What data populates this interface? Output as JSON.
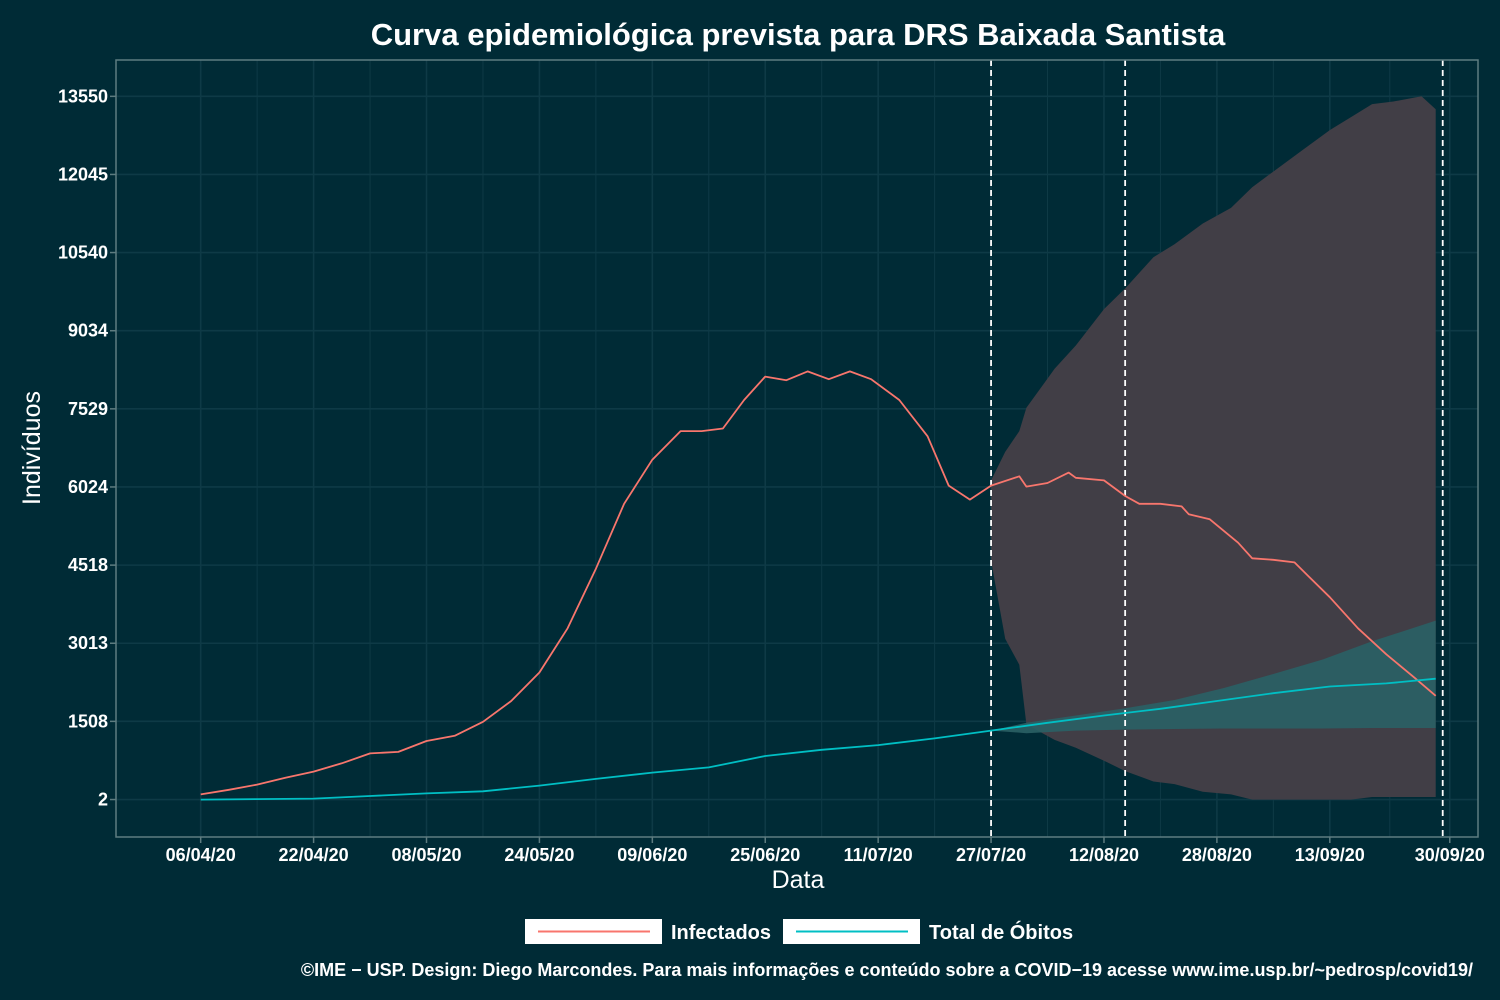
{
  "chart_data": {
    "type": "line",
    "title": "Curva epidemiológica prevista para DRS Baixada Santista",
    "xlabel": "Data",
    "ylabel": "Indivíduos",
    "x_start": "2020-04-06",
    "x_end": "2020-09-28",
    "xlim": [
      "2020-03-25",
      "2020-10-04"
    ],
    "ylim": [
      -720,
      14250
    ],
    "x_ticks": [
      "06/04/20",
      "22/04/20",
      "08/05/20",
      "24/05/20",
      "09/06/20",
      "25/06/20",
      "11/07/20",
      "27/07/20",
      "12/08/20",
      "28/08/20",
      "13/09/20",
      "30/09/20"
    ],
    "x_tick_dates": [
      "2020-04-06",
      "2020-04-22",
      "2020-05-08",
      "2020-05-24",
      "2020-06-09",
      "2020-06-25",
      "2020-07-11",
      "2020-07-27",
      "2020-08-12",
      "2020-08-28",
      "2020-09-13",
      "2020-09-30"
    ],
    "y_ticks": [
      2,
      1508,
      3013,
      4518,
      6024,
      7529,
      9034,
      10540,
      12045,
      13550
    ],
    "vlines": [
      "2020-07-27",
      "2020-08-15",
      "2020-09-29"
    ],
    "grid": true,
    "legend_position": "bottom",
    "series": [
      {
        "name": "Infectados",
        "color": "#f8766d",
        "points": [
          [
            "2020-04-06",
            100
          ],
          [
            "2020-04-10",
            190
          ],
          [
            "2020-04-14",
            290
          ],
          [
            "2020-04-18",
            420
          ],
          [
            "2020-04-22",
            540
          ],
          [
            "2020-04-26",
            700
          ],
          [
            "2020-04-30",
            890
          ],
          [
            "2020-05-04",
            920
          ],
          [
            "2020-05-08",
            1130
          ],
          [
            "2020-05-12",
            1230
          ],
          [
            "2020-05-16",
            1500
          ],
          [
            "2020-05-20",
            1900
          ],
          [
            "2020-05-24",
            2450
          ],
          [
            "2020-05-28",
            3300
          ],
          [
            "2020-06-01",
            4450
          ],
          [
            "2020-06-05",
            5700
          ],
          [
            "2020-06-09",
            6550
          ],
          [
            "2020-06-13",
            7100
          ],
          [
            "2020-06-16",
            7100
          ],
          [
            "2020-06-19",
            7150
          ],
          [
            "2020-06-22",
            7700
          ],
          [
            "2020-06-25",
            8150
          ],
          [
            "2020-06-28",
            8080
          ],
          [
            "2020-07-01",
            8250
          ],
          [
            "2020-07-04",
            8100
          ],
          [
            "2020-07-07",
            8250
          ],
          [
            "2020-07-10",
            8100
          ],
          [
            "2020-07-14",
            7700
          ],
          [
            "2020-07-18",
            7000
          ],
          [
            "2020-07-21",
            6050
          ],
          [
            "2020-07-24",
            5780
          ],
          [
            "2020-07-27",
            6050
          ],
          [
            "2020-07-31",
            6230
          ],
          [
            "2020-08-01",
            6030
          ],
          [
            "2020-08-04",
            6100
          ],
          [
            "2020-08-07",
            6300
          ],
          [
            "2020-08-08",
            6200
          ],
          [
            "2020-08-12",
            6150
          ],
          [
            "2020-08-15",
            5850
          ],
          [
            "2020-08-17",
            5700
          ],
          [
            "2020-08-20",
            5700
          ],
          [
            "2020-08-23",
            5650
          ],
          [
            "2020-08-24",
            5500
          ],
          [
            "2020-08-27",
            5400
          ],
          [
            "2020-08-31",
            4950
          ],
          [
            "2020-09-02",
            4650
          ],
          [
            "2020-09-05",
            4620
          ],
          [
            "2020-09-08",
            4570
          ],
          [
            "2020-09-10",
            4300
          ],
          [
            "2020-09-13",
            3900
          ],
          [
            "2020-09-17",
            3300
          ],
          [
            "2020-09-21",
            2800
          ],
          [
            "2020-09-25",
            2350
          ],
          [
            "2020-09-28",
            2000
          ]
        ],
        "band": [
          [
            "2020-07-27",
            4600,
            6150
          ],
          [
            "2020-07-29",
            3100,
            6700
          ],
          [
            "2020-07-31",
            2600,
            7100
          ],
          [
            "2020-08-01",
            1450,
            7550
          ],
          [
            "2020-08-05",
            1150,
            8300
          ],
          [
            "2020-08-08",
            1000,
            8750
          ],
          [
            "2020-08-12",
            750,
            9450
          ],
          [
            "2020-08-15",
            550,
            9850
          ],
          [
            "2020-08-19",
            350,
            10450
          ],
          [
            "2020-08-22",
            300,
            10700
          ],
          [
            "2020-08-26",
            150,
            11100
          ],
          [
            "2020-08-30",
            100,
            11400
          ],
          [
            "2020-09-02",
            0,
            11800
          ],
          [
            "2020-09-05",
            0,
            12100
          ],
          [
            "2020-09-09",
            0,
            12500
          ],
          [
            "2020-09-13",
            0,
            12900
          ],
          [
            "2020-09-16",
            0,
            13150
          ],
          [
            "2020-09-19",
            50,
            13400
          ],
          [
            "2020-09-22",
            50,
            13450
          ],
          [
            "2020-09-26",
            50,
            13550
          ],
          [
            "2020-09-28",
            50,
            13300
          ]
        ]
      },
      {
        "name": "Total de Óbitos",
        "color": "#00bfc4",
        "points": [
          [
            "2020-04-06",
            0
          ],
          [
            "2020-04-14",
            10
          ],
          [
            "2020-04-22",
            20
          ],
          [
            "2020-04-30",
            70
          ],
          [
            "2020-05-08",
            120
          ],
          [
            "2020-05-16",
            160
          ],
          [
            "2020-05-24",
            270
          ],
          [
            "2020-06-01",
            400
          ],
          [
            "2020-06-09",
            520
          ],
          [
            "2020-06-17",
            620
          ],
          [
            "2020-06-25",
            840
          ],
          [
            "2020-07-03",
            960
          ],
          [
            "2020-07-11",
            1050
          ],
          [
            "2020-07-19",
            1180
          ],
          [
            "2020-07-27",
            1330
          ],
          [
            "2020-08-04",
            1480
          ],
          [
            "2020-08-12",
            1620
          ],
          [
            "2020-08-20",
            1750
          ],
          [
            "2020-08-28",
            1900
          ],
          [
            "2020-09-05",
            2050
          ],
          [
            "2020-09-13",
            2180
          ],
          [
            "2020-09-21",
            2240
          ],
          [
            "2020-09-28",
            2330
          ]
        ],
        "band": [
          [
            "2020-07-27",
            1330,
            1330
          ],
          [
            "2020-08-01",
            1280,
            1480
          ],
          [
            "2020-08-08",
            1330,
            1620
          ],
          [
            "2020-08-15",
            1350,
            1760
          ],
          [
            "2020-08-22",
            1360,
            1920
          ],
          [
            "2020-08-29",
            1370,
            2150
          ],
          [
            "2020-09-05",
            1370,
            2420
          ],
          [
            "2020-09-12",
            1370,
            2700
          ],
          [
            "2020-09-19",
            1380,
            3050
          ],
          [
            "2020-09-28",
            1380,
            3450
          ]
        ]
      }
    ]
  },
  "caption": "©IME − USP. Design: Diego Marcondes. Para mais informações e conteúdo sobre a COVID−19 acesse www.ime.usp.br/~pedrosp/covid19/",
  "colors": {
    "background": "#002b36",
    "panel_border": "#5e7c80",
    "grid": "#0e3a46",
    "band_infected": "#413e46",
    "band_deaths": "#2a6165",
    "vline": "#ffffff"
  }
}
